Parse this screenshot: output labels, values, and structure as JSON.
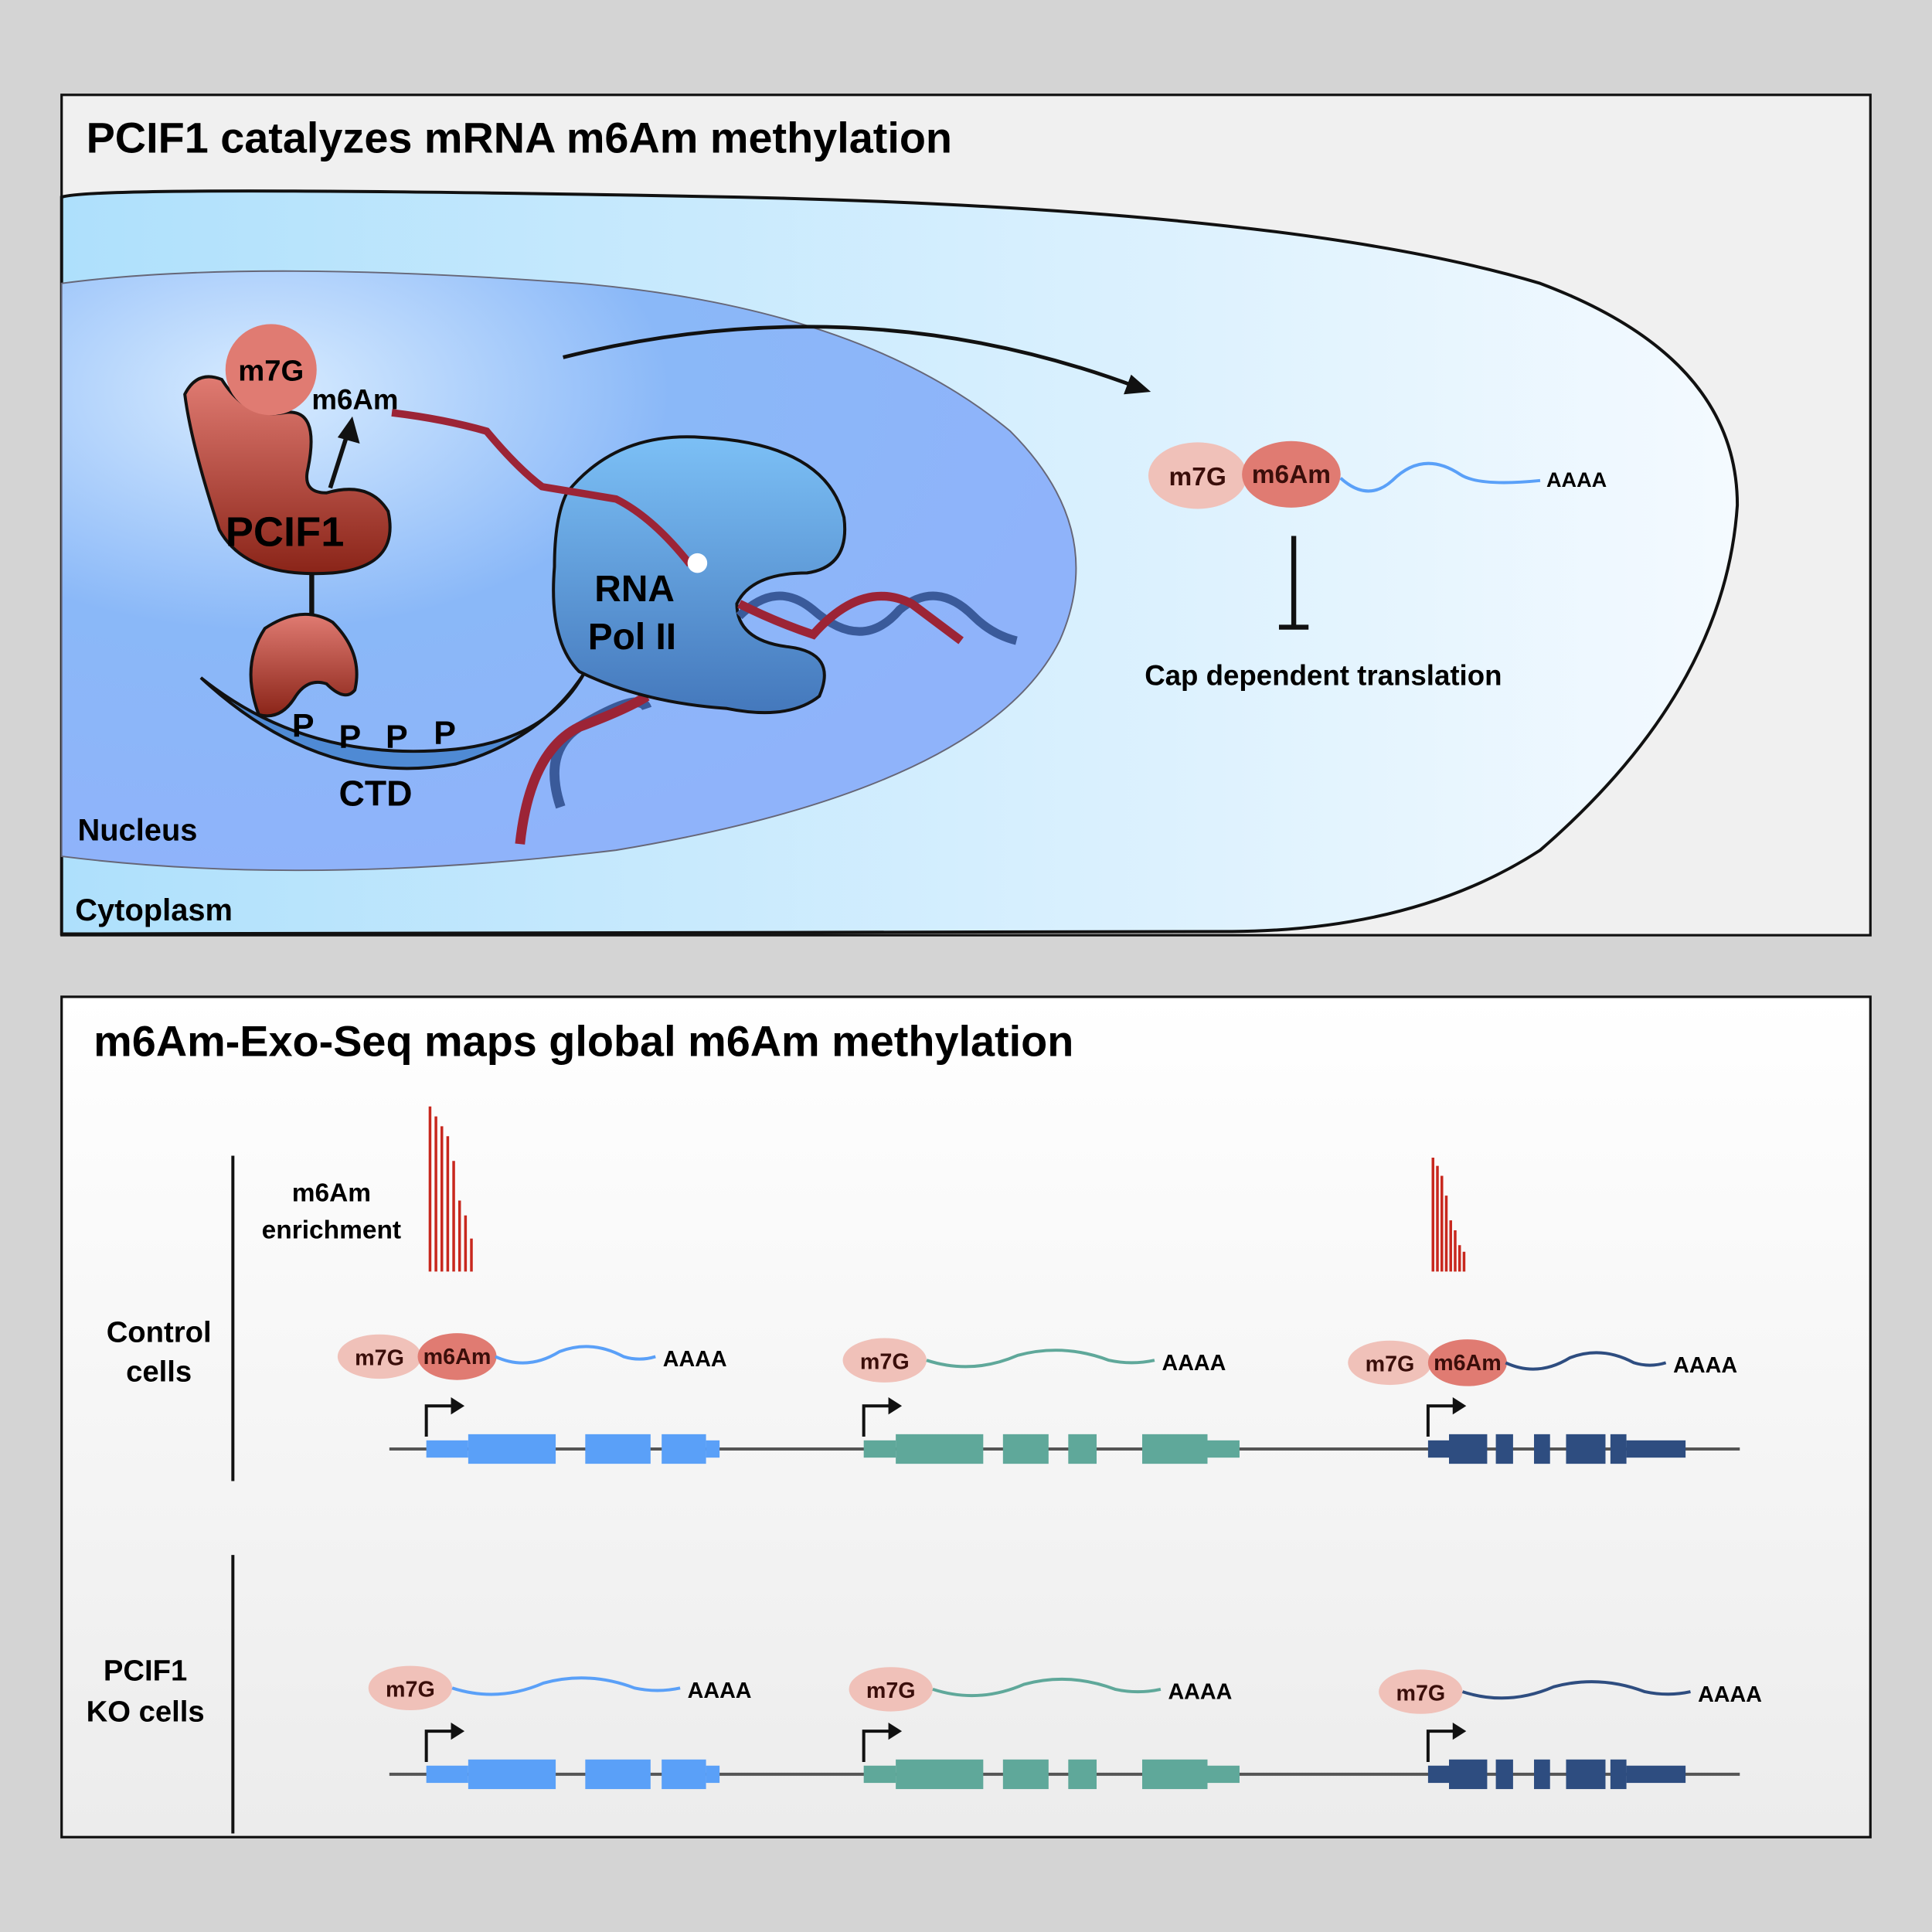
{
  "panel1": {
    "title": "PCIF1 catalyzes mRNA m6Am methylation",
    "m7g": "m7G",
    "m6am": "m6Am",
    "pcif1": "PCIF1",
    "rna": "RNA",
    "pol2": "Pol II",
    "p": "P",
    "ctd": "CTD",
    "nucleus": "Nucleus",
    "cytoplasm": "Cytoplasm",
    "cyto_m7g": "m7G",
    "cyto_m6am": "m6Am",
    "cyto_polya": "AAAA",
    "inhibition_label": "Cap dependent translation"
  },
  "panel2": {
    "title": "m6Am-Exo-Seq maps global m6Am methylation",
    "enrichment_line1": "m6Am",
    "enrichment_line2": "enrichment",
    "control_line1": "Control",
    "control_line2": "cells",
    "ko_line1": "PCIF1",
    "ko_line2": "KO cells",
    "m7g": "m7G",
    "m6am": "m6Am",
    "polya": "AAAA",
    "enrichment_gene1": [
      1.0,
      0.94,
      0.88,
      0.82,
      0.67,
      0.43,
      0.34,
      0.2
    ],
    "enrichment_gene3": [
      0.69,
      0.64,
      0.58,
      0.46,
      0.31,
      0.25,
      0.16,
      0.12
    ]
  },
  "colors": {
    "gene1": "#5aa0f8",
    "gene2": "#5fa89a",
    "gene3": "#2e4d80",
    "m7g": "#f0c1b9",
    "m6am": "#e07b72",
    "pcif1": "#b34a3e",
    "enrichment": "#c8281e"
  }
}
